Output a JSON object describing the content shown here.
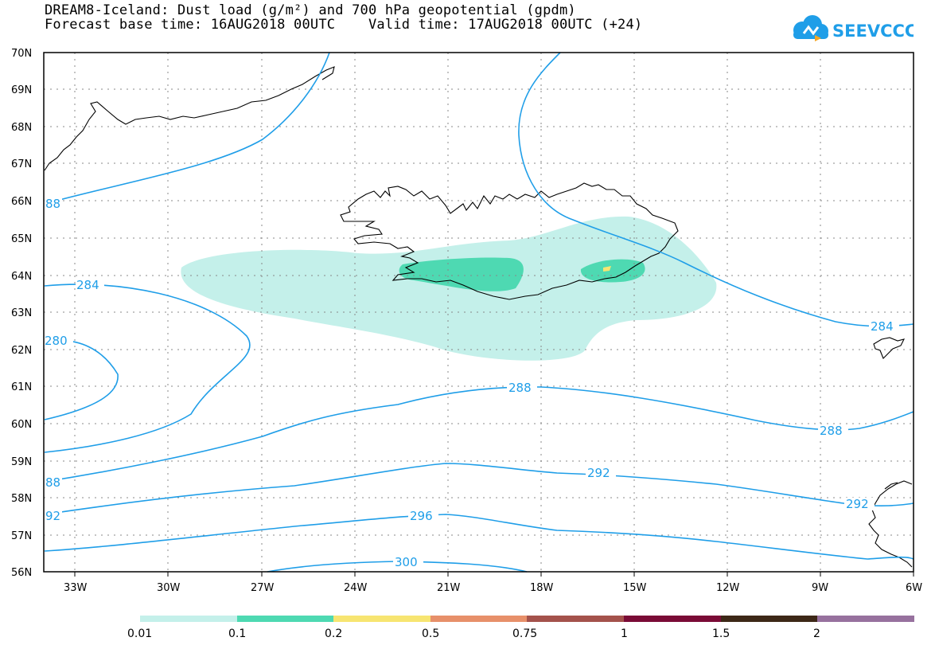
{
  "header": {
    "title_line1": "DREAM8-Iceland: Dust load (g/m²) and 700 hPa geopotential (gpdm)",
    "title_line2": "Forecast base time: 16AUG2018 00UTC    Valid time: 17AUG2018 00UTC (+24)",
    "logo_text": "SEEVCCC"
  },
  "map": {
    "lat_labels": [
      "70N",
      "69N",
      "68N",
      "67N",
      "66N",
      "65N",
      "64N",
      "63N",
      "62N",
      "61N",
      "60N",
      "59N",
      "58N",
      "57N",
      "56N"
    ],
    "lon_labels": [
      "33W",
      "30W",
      "27W",
      "24W",
      "21W",
      "18W",
      "15W",
      "12W",
      "9W",
      "6W"
    ],
    "contour_labels": [
      "88",
      "284",
      "284",
      "280",
      "288",
      "288",
      "88",
      "292",
      "292",
      "92",
      "296",
      "300"
    ],
    "colors": {
      "contour": "#1f9ee8",
      "coast": "#000000",
      "grid": "#888888"
    }
  },
  "colorbar": {
    "colors": [
      "#c4f0ea",
      "#4ed9b2",
      "#f7e571",
      "#e7906a",
      "#a4524c",
      "#7a0b36",
      "#3d2817",
      "#97719e"
    ],
    "labels": [
      "0.01",
      "0.1",
      "0.2",
      "0.5",
      "0.75",
      "1",
      "1.5",
      "2"
    ]
  }
}
